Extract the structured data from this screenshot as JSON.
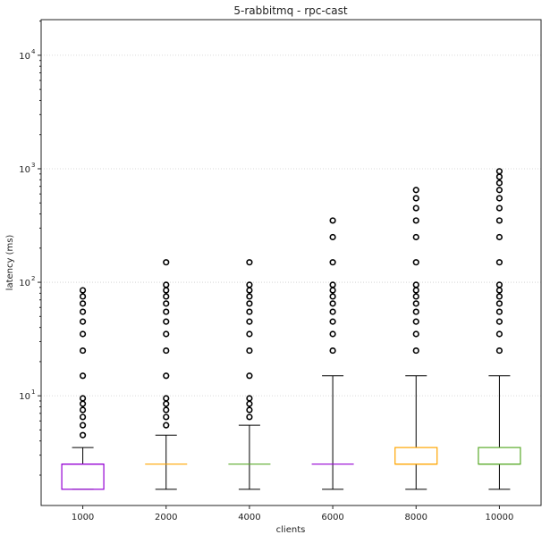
{
  "chart_data": {
    "type": "box",
    "title": "5-rabbitmq - rpc-cast",
    "xlabel": "clients",
    "ylabel": "latency (ms)",
    "yscale": "log",
    "ylim": [
      1.08,
      20600
    ],
    "yticks": [
      10,
      100,
      1000,
      10000
    ],
    "ytick_labels": [
      "10",
      "10",
      "10",
      "10"
    ],
    "ytick_exponents": [
      "1",
      "2",
      "3",
      "4"
    ],
    "grid": "y-dotted",
    "categories": [
      "1000",
      "2000",
      "4000",
      "6000",
      "8000",
      "10000"
    ],
    "colors": [
      "#9400d3",
      "#ffa500",
      "#5aaa2a",
      "#9400d3",
      "#ffa500",
      "#5aaa2a"
    ],
    "boxes": [
      {
        "whisker_low": 1.5,
        "q1": 1.5,
        "median": 2.5,
        "q3": 2.5,
        "whisker_high": 3.5,
        "outliers": [
          4.5,
          5.5,
          6.5,
          7.5,
          8.5,
          9.5,
          15,
          25,
          35,
          45,
          55,
          65,
          75,
          85
        ]
      },
      {
        "whisker_low": 1.5,
        "q1": 2.5,
        "median": 2.5,
        "q3": 2.5,
        "whisker_high": 4.5,
        "outliers": [
          5.5,
          6.5,
          7.5,
          8.5,
          9.5,
          15,
          25,
          35,
          45,
          55,
          65,
          75,
          85,
          95,
          150
        ]
      },
      {
        "whisker_low": 1.5,
        "q1": 2.5,
        "median": 2.5,
        "q3": 2.5,
        "whisker_high": 5.5,
        "outliers": [
          6.5,
          7.5,
          8.5,
          9.5,
          15,
          25,
          35,
          45,
          55,
          65,
          75,
          85,
          95,
          150
        ]
      },
      {
        "whisker_low": 1.5,
        "q1": 2.5,
        "median": 2.5,
        "q3": 2.5,
        "whisker_high": 15,
        "outliers": [
          25,
          35,
          45,
          55,
          65,
          75,
          85,
          95,
          150,
          250,
          350
        ]
      },
      {
        "whisker_low": 1.5,
        "q1": 2.5,
        "median": 2.5,
        "q3": 3.5,
        "whisker_high": 15,
        "outliers": [
          25,
          35,
          45,
          55,
          65,
          75,
          85,
          95,
          150,
          250,
          350,
          450,
          550,
          650
        ]
      },
      {
        "whisker_low": 1.5,
        "q1": 2.5,
        "median": 2.5,
        "q3": 3.5,
        "whisker_high": 15,
        "outliers": [
          25,
          35,
          45,
          55,
          65,
          75,
          85,
          95,
          150,
          250,
          350,
          450,
          550,
          650,
          750,
          850,
          950
        ]
      }
    ]
  }
}
